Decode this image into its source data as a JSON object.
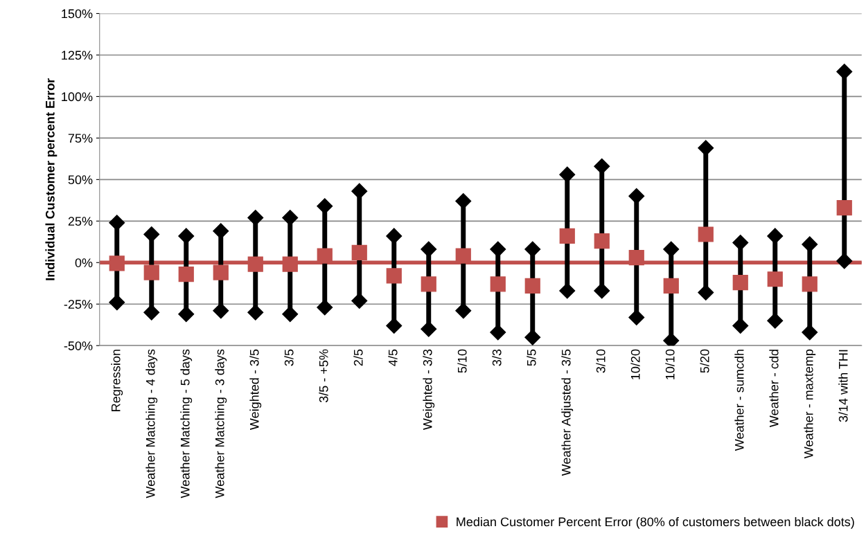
{
  "chart_data": {
    "type": "scatter",
    "ylabel": "Individual Customer percent Error",
    "categories": [
      "Regression",
      "Weather Matching - 4 days",
      "Weather Matching - 5 days",
      "Weather Matching - 3 days",
      "Weighted - 3/5",
      "3/5",
      "3/5 - +5%",
      "2/5",
      "4/5",
      "Weighted - 3/3",
      "5/10",
      "3/3",
      "5/5",
      "Weather Adjusted - 3/5",
      "3/10",
      "10/20",
      "10/10",
      "5/20",
      "Weather - sumcdh",
      "Weather - cdd",
      "Weather - maxtemp",
      "3/14 with THI"
    ],
    "series": [
      {
        "name": "Median Customer Percent Error (80% of customers between black dots)",
        "color": "#c0504d",
        "marker": "square",
        "values": [
          -0.5,
          -6,
          -7,
          -6,
          -1,
          -1,
          4,
          6,
          -8,
          -13,
          4,
          -13,
          -14,
          16,
          13,
          3,
          -14,
          17,
          -12,
          -10,
          -13,
          33
        ]
      },
      {
        "color": "#000000",
        "marker": "diamond",
        "values": [
          24,
          17,
          16,
          19,
          27,
          27,
          34,
          43,
          16,
          8,
          37,
          8,
          8,
          53,
          58,
          40,
          8,
          69,
          12,
          16,
          11,
          115
        ]
      },
      {
        "color": "#000000",
        "marker": "diamond",
        "values": [
          -24,
          -30,
          -31,
          -29,
          -30,
          -31,
          -27,
          -23,
          -38,
          -40,
          -29,
          -42,
          -45,
          -17,
          -17,
          -33,
          -47,
          -18,
          -38,
          -35,
          -42,
          1
        ]
      }
    ],
    "ref_lines": [
      {
        "axis": "y",
        "value": 0,
        "color": "#c0504d"
      }
    ],
    "ylim": [
      -50,
      150
    ],
    "yticks": [
      {
        "value": -50,
        "label": "-50%"
      },
      {
        "value": -25,
        "label": "-25%"
      },
      {
        "value": 0,
        "label": "0%"
      },
      {
        "value": 25,
        "label": "25%"
      },
      {
        "value": 50,
        "label": "50%"
      },
      {
        "value": 75,
        "label": "75%"
      },
      {
        "value": 100,
        "label": "100%"
      },
      {
        "value": 125,
        "label": "125%"
      },
      {
        "value": 150,
        "label": "150%"
      }
    ],
    "grid": "y",
    "legend": "bottom right"
  }
}
